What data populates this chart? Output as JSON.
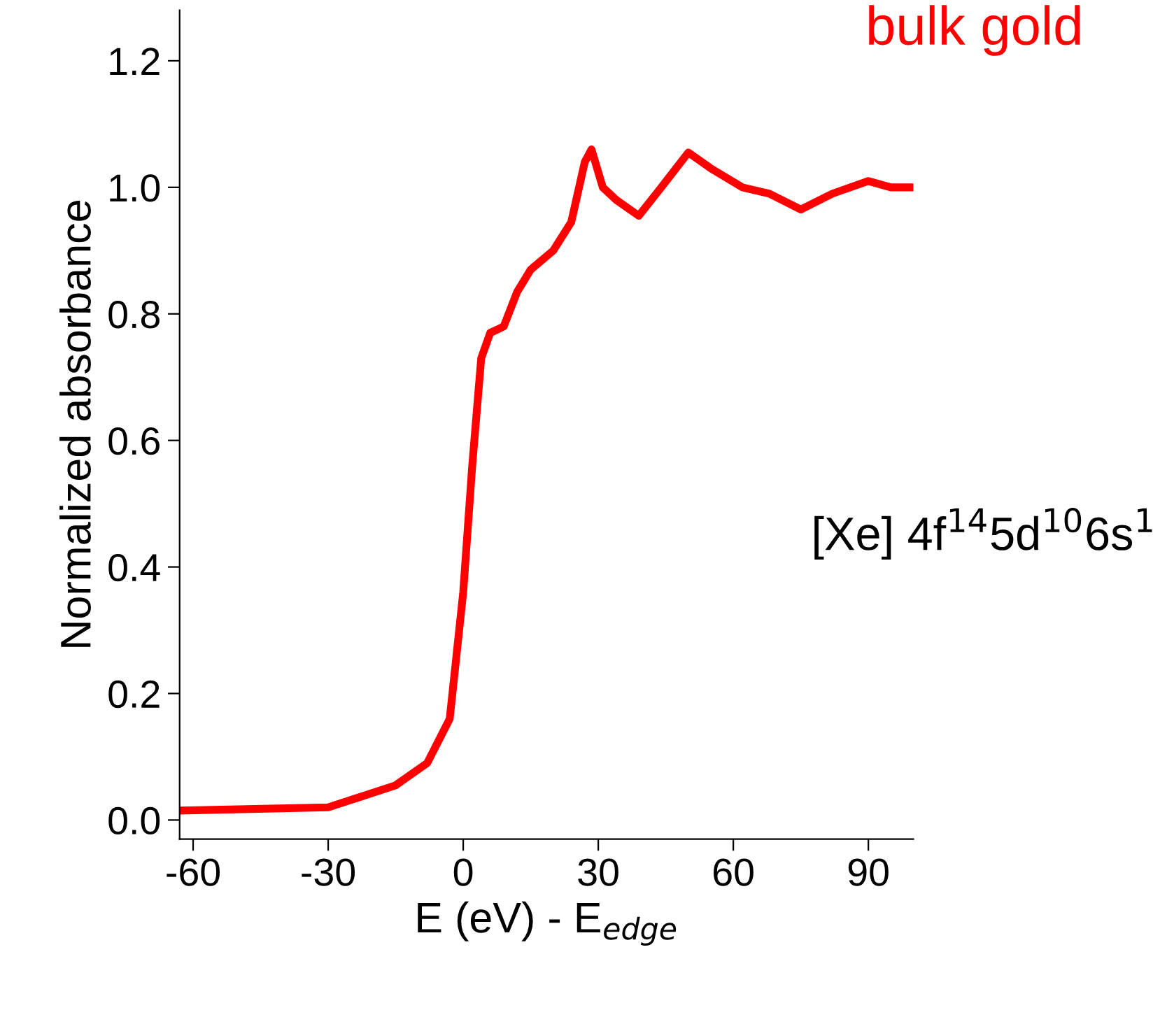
{
  "chart_data": {
    "type": "line",
    "xlabel": "E (eV) - E$_{edge}$",
    "ylabel": "Normalized absorbance",
    "x": [
      -63,
      -30,
      -15,
      -8,
      -3,
      0,
      2,
      4,
      6,
      9,
      12,
      15,
      20,
      24,
      27,
      28.5,
      31,
      34,
      39,
      44,
      50,
      55,
      62,
      68,
      75,
      82,
      90,
      95,
      100
    ],
    "series": [
      {
        "color": "#ff0000",
        "values": [
          0.015,
          0.02,
          0.055,
          0.09,
          0.16,
          0.36,
          0.56,
          0.73,
          0.77,
          0.78,
          0.835,
          0.87,
          0.9,
          0.945,
          1.04,
          1.06,
          1.0,
          0.98,
          0.955,
          1.0,
          1.055,
          1.03,
          1.0,
          0.99,
          0.965,
          0.99,
          1.01,
          1.0,
          1.0
        ]
      }
    ],
    "xlim": [
      -63,
      100
    ],
    "ylim": [
      -0.03,
      1.28
    ],
    "xticks": [
      -60,
      -30,
      0,
      30,
      60,
      90
    ],
    "yticks": [
      {
        "value": 0,
        "label": "0.0"
      },
      {
        "value": 0.2,
        "label": "0.2"
      },
      {
        "value": 0.4,
        "label": "0.4"
      },
      {
        "value": 0.6,
        "label": "0.6"
      },
      {
        "value": 0.8,
        "label": "0.8"
      },
      {
        "value": 1.0,
        "label": "1.0"
      },
      {
        "value": 1.2,
        "label": "1.2"
      }
    ],
    "annotations": [
      "bulk gold",
      "[Xe] 4f$^{14}$5d$^{10}$6s$^{1}$"
    ],
    "grid": false,
    "legend": false,
    "line_style": "solid",
    "marker": "none"
  }
}
